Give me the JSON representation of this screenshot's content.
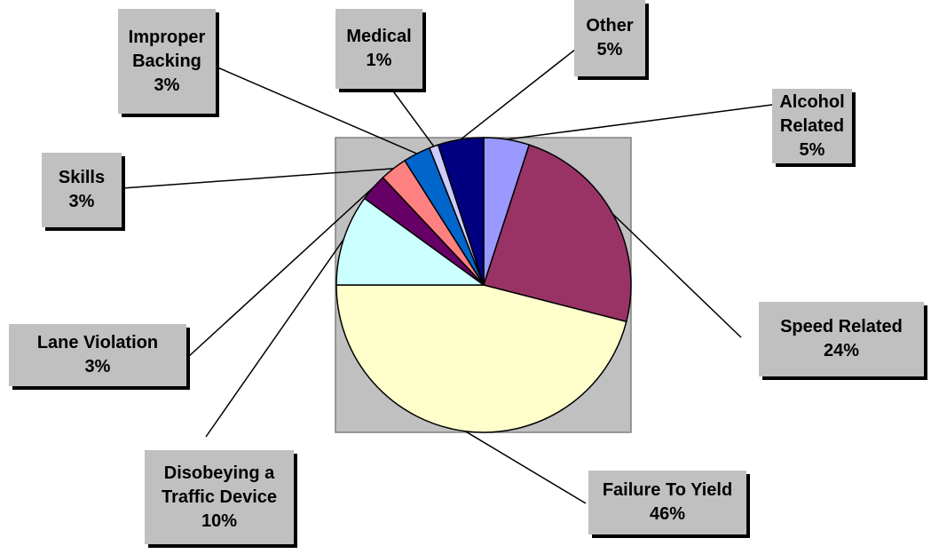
{
  "chart_data": {
    "type": "pie",
    "categories": [
      "Alcohol Related",
      "Speed Related",
      "Failure To Yield",
      "Disobeying a Traffic Device",
      "Lane Violation",
      "Skills",
      "Improper Backing",
      "Medical",
      "Other"
    ],
    "values": [
      5,
      24,
      46,
      10,
      3,
      3,
      3,
      1,
      5
    ],
    "value_labels": [
      "5%",
      "24%",
      "46%",
      "10%",
      "3%",
      "3%",
      "3%",
      "1%",
      "5%"
    ],
    "colors": [
      "#9999ff",
      "#993366",
      "#ffffcc",
      "#ccffff",
      "#660066",
      "#ff8080",
      "#0066cc",
      "#ccccff",
      "#000080"
    ]
  }
}
